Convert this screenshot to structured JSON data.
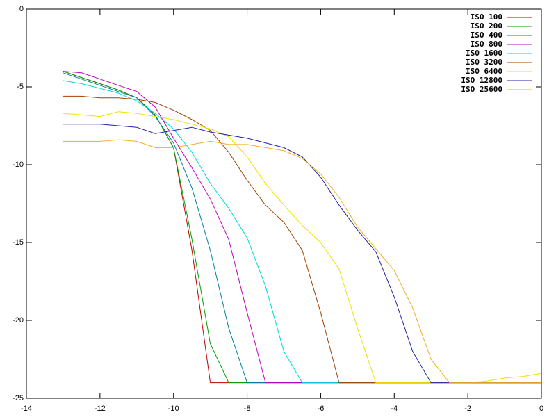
{
  "chart_data": {
    "type": "line",
    "x": [
      -13,
      -12.5,
      -12,
      -11.5,
      -11,
      -10.5,
      -10,
      -9.5,
      -9,
      -8.5,
      -8,
      -7.5,
      -7,
      -6.5,
      -6,
      -5.5,
      -5,
      -4.5,
      -4,
      -3.5,
      -3,
      -2.5,
      -2,
      -1.5,
      -1,
      -0.5,
      0
    ],
    "series": [
      {
        "name": "ISO 100",
        "color": "#c00000",
        "values": [
          -4.0,
          -4.4,
          -4.8,
          -5.2,
          -5.7,
          -6.8,
          -8.9,
          -15.5,
          -24,
          -24,
          -24,
          -24,
          -24,
          -24,
          -24,
          -24,
          -24,
          -24,
          -24,
          -24,
          -24,
          -24,
          -24,
          -24,
          -24,
          -24,
          -24
        ]
      },
      {
        "name": "ISO 200",
        "color": "#00a000",
        "values": [
          -4.0,
          -4.4,
          -4.8,
          -5.2,
          -5.7,
          -6.8,
          -8.9,
          -14.8,
          -21.5,
          -24,
          -24,
          -24,
          -24,
          -24,
          -24,
          -24,
          -24,
          -24,
          -24,
          -24,
          -24,
          -24,
          -24,
          -24,
          -24,
          -24,
          -24
        ]
      },
      {
        "name": "ISO 400",
        "color": "#0080a0",
        "values": [
          -4.1,
          -4.5,
          -4.9,
          -5.3,
          -5.7,
          -6.9,
          -8.6,
          -11.5,
          -15.5,
          -20.5,
          -24,
          -24,
          -24,
          -24,
          -24,
          -24,
          -24,
          -24,
          -24,
          -24,
          -24,
          -24,
          -24,
          -24,
          -24,
          -24,
          -24
        ]
      },
      {
        "name": "ISO 800",
        "color": "#c000c0",
        "values": [
          -4.0,
          -4.1,
          -4.5,
          -4.9,
          -5.3,
          -6.3,
          -8.3,
          -10.2,
          -12.2,
          -14.8,
          -19.5,
          -24,
          -24,
          -24,
          -24,
          -24,
          -24,
          -24,
          -24,
          -24,
          -24,
          -24,
          -24,
          -24,
          -24,
          -24,
          -24
        ]
      },
      {
        "name": "ISO 1600",
        "color": "#00d8d8",
        "values": [
          -4.6,
          -4.8,
          -5.1,
          -5.4,
          -5.9,
          -6.7,
          -7.7,
          -9.2,
          -11.2,
          -12.8,
          -14.7,
          -17.8,
          -22,
          -24,
          -24,
          -24,
          -24,
          -24,
          -24,
          -24,
          -24,
          -24,
          -24,
          -24,
          -24,
          -24,
          -24
        ]
      },
      {
        "name": "ISO 3200",
        "color": "#a04000",
        "values": [
          -5.6,
          -5.6,
          -5.7,
          -5.7,
          -5.8,
          -6.0,
          -6.5,
          -7.1,
          -7.8,
          -9.2,
          -11,
          -12.6,
          -13.7,
          -15.5,
          -19.5,
          -24,
          -24,
          -24,
          -24,
          -24,
          -24,
          -24,
          -24,
          -24,
          -24,
          -24,
          -24
        ]
      },
      {
        "name": "ISO 6400",
        "color": "#f0e000",
        "values": [
          -6.7,
          -6.8,
          -6.9,
          -6.6,
          -6.7,
          -6.9,
          -7.1,
          -7.4,
          -7.7,
          -8.2,
          -9.5,
          -11.2,
          -12.6,
          -13.9,
          -15,
          -16.7,
          -20.5,
          -24,
          -24,
          -24,
          -24,
          -24,
          -24,
          -23.9,
          -23.7,
          -23.6,
          -23.4
        ]
      },
      {
        "name": "ISO 12800",
        "color": "#2020a0",
        "values": [
          -7.4,
          -7.4,
          -7.4,
          -7.5,
          -7.6,
          -8.0,
          -7.8,
          -7.6,
          -7.9,
          -8.1,
          -8.3,
          -8.6,
          -8.9,
          -9.5,
          -10.8,
          -12.6,
          -14.2,
          -15.6,
          -18.5,
          -22,
          -24,
          -24,
          -24,
          -24,
          -24,
          -24,
          -24
        ]
      },
      {
        "name": "ISO 25600",
        "color": "#f0b020",
        "values": [
          -8.5,
          -8.5,
          -8.5,
          -8.4,
          -8.5,
          -8.9,
          -8.9,
          -8.7,
          -8.5,
          -8.7,
          -8.7,
          -8.9,
          -9.1,
          -9.6,
          -10.6,
          -12.1,
          -14,
          -15.4,
          -16.8,
          -19.2,
          -22.5,
          -24,
          -24,
          -24,
          -24,
          -24,
          -24
        ]
      }
    ],
    "xlim": [
      -14,
      0
    ],
    "xticks": [
      -14,
      -12,
      -10,
      -8,
      -6,
      -4,
      -2,
      0
    ],
    "ylim": [
      -25,
      0
    ],
    "yticks": [
      -25,
      -20,
      -15,
      -10,
      -5,
      0
    ],
    "legend": "top-right"
  }
}
